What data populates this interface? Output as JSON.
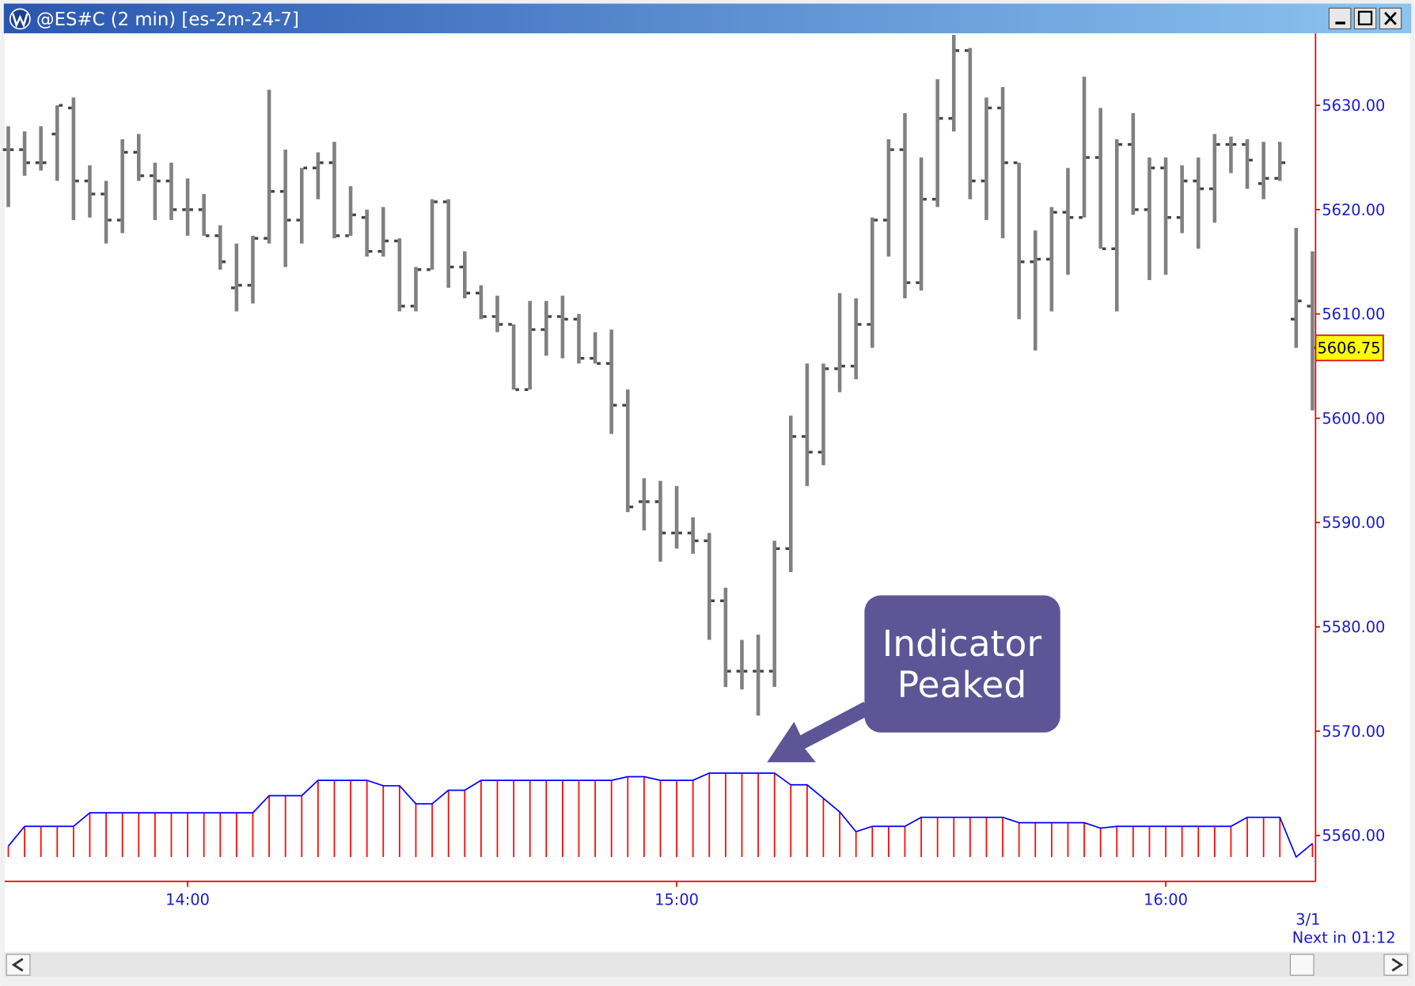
{
  "window": {
    "title": "@ES#C (2 min) [es-2m-24-7]"
  },
  "chart_data": {
    "type": "ohlc",
    "color": "#808080",
    "open": [
      5625.75,
      5625.75,
      5624.5,
      5627.25,
      5629.75,
      5622.75,
      5621.5,
      5619,
      5625.5,
      5623.25,
      5622.75,
      5620,
      5620,
      5617.5,
      5612.5,
      5612.75,
      5617.25,
      5621.75,
      5619,
      5624,
      5624.5,
      5617.5,
      5619.25,
      5616,
      5617,
      5610.75,
      5614.25,
      5620.75,
      5614.5,
      5612,
      5609.75,
      5609,
      5602.75,
      5608.5,
      5609.75,
      5609.5,
      5605.75,
      5605.25,
      5601.25,
      5592,
      5592,
      5589,
      5589,
      5588.25,
      5582.5,
      5575.75,
      5575.75,
      5575.75,
      5587.5,
      5598.25,
      5596.75,
      5604.75,
      5605,
      5609,
      5619,
      5625.75,
      5613,
      5621,
      5628.75,
      5635.25,
      5622.75,
      5629.75,
      5624.5,
      5615,
      5615.25,
      5619.75,
      5619.25,
      5625,
      5616.25,
      5626.25,
      5620,
      5624,
      5619.25,
      5622.75,
      5622,
      5626.25,
      5626.25,
      5622.5,
      5623,
      5609.5,
      5610.75
    ],
    "high": [
      5628,
      5627.5,
      5628,
      5630,
      5630.75,
      5624.25,
      5622.75,
      5626.75,
      5627.25,
      5624.5,
      5624.5,
      5623,
      5621.5,
      5618.5,
      5616.75,
      5617.5,
      5631.5,
      5625.75,
      5624,
      5625.5,
      5626.5,
      5622.25,
      5620,
      5620.25,
      5617.25,
      5614.5,
      5621,
      5621,
      5616,
      5612.75,
      5611.75,
      5609,
      5611.25,
      5611.25,
      5611.75,
      5610,
      5608.25,
      5608.5,
      5602.75,
      5594.25,
      5594,
      5593.5,
      5590.5,
      5589,
      5583.75,
      5578.75,
      5579.25,
      5588.25,
      5600.25,
      5605.25,
      5605.25,
      5612,
      5611.5,
      5619.25,
      5626.75,
      5629.25,
      5625,
      5632.5,
      5636.75,
      5635.5,
      5630.75,
      5631.75,
      5624.5,
      5618,
      5620.25,
      5624,
      5632.75,
      5629.75,
      5626.75,
      5629.25,
      5625,
      5625,
      5624.25,
      5625,
      5627.25,
      5627,
      5626.75,
      5626.5,
      5626.5,
      5618.25,
      5616
    ],
    "low": [
      5620.25,
      5623.25,
      5623.75,
      5622.75,
      5619,
      5619.25,
      5616.75,
      5617.75,
      5622.75,
      5619,
      5619,
      5617.5,
      5617.5,
      5614.25,
      5610.25,
      5611,
      5616.75,
      5614.5,
      5616.75,
      5621,
      5617.25,
      5617.5,
      5615.5,
      5615.5,
      5610.25,
      5610.25,
      5614.25,
      5612.5,
      5611.5,
      5609.5,
      5608.25,
      5602.75,
      5602.75,
      5606,
      5605.75,
      5605.25,
      5605.25,
      5598.5,
      5591,
      5589.25,
      5586.25,
      5587.5,
      5587,
      5578.75,
      5574.25,
      5574,
      5571.5,
      5574.25,
      5585.25,
      5593.5,
      5595.5,
      5602.5,
      5603.75,
      5606.75,
      5615.5,
      5611.5,
      5612.25,
      5620.25,
      5627.5,
      5621,
      5619,
      5617.25,
      5609.5,
      5606.5,
      5610.25,
      5613.75,
      5619.25,
      5616.25,
      5610.25,
      5619.5,
      5613.25,
      5613.75,
      5617.75,
      5616.25,
      5618.75,
      5623.5,
      5622,
      5621,
      5622.75,
      5606.75,
      5600.75
    ],
    "close": [
      5625.75,
      5624.5,
      5624.5,
      5630,
      5622.75,
      5621.5,
      5619,
      5625.5,
      5623.25,
      5622.75,
      5620,
      5620,
      5617.5,
      5615,
      5612.75,
      5617.25,
      5621.75,
      5619,
      5624,
      5624.5,
      5617.5,
      5619.5,
      5616,
      5617,
      5610.75,
      5614.25,
      5620.75,
      5614.5,
      5612,
      5609.75,
      5609,
      5602.75,
      5608.5,
      5609.75,
      5609.5,
      5605.75,
      5605.25,
      5601.25,
      5591.5,
      5592,
      5589,
      5589,
      5588.25,
      5582.5,
      5575.75,
      5575.75,
      5575.75,
      5587.5,
      5598.25,
      5596.75,
      5604.75,
      5605,
      5609,
      5619,
      5625.75,
      5613,
      5621,
      5628.75,
      5635.25,
      5622.75,
      5629.75,
      5624.5,
      5615,
      5615.25,
      5619.75,
      5619.25,
      5625,
      5616.25,
      5626.25,
      5620,
      5624,
      5619.25,
      5622.75,
      5622,
      5626.25,
      5626.25,
      5624.75,
      5623,
      5624.5,
      5611.25,
      5606.75
    ],
    "ylim": [
      5555.6,
      5636.9
    ],
    "yticks": [
      {
        "value": 5560,
        "label": "5560.00"
      },
      {
        "value": 5570,
        "label": "5570.00"
      },
      {
        "value": 5580,
        "label": "5580.00"
      },
      {
        "value": 5590,
        "label": "5590.00"
      },
      {
        "value": 5600,
        "label": "5600.00"
      },
      {
        "value": 5610,
        "label": "5610.00"
      },
      {
        "value": 5620,
        "label": "5620.00"
      },
      {
        "value": 5630,
        "label": "5630.00"
      }
    ],
    "xlim": [
      -0.22,
      80.19
    ],
    "xticks": [
      {
        "value": 11,
        "label": "14:00"
      },
      {
        "value": 41,
        "label": "15:00"
      },
      {
        "value": 71,
        "label": "16:00"
      }
    ],
    "last_price": 5606.75,
    "indicator": {
      "type": "histogram",
      "bar_color": "#ff0000",
      "line_color": "#0000ff",
      "values": [
        10,
        32,
        32,
        32,
        32,
        47,
        47,
        47,
        47,
        47,
        47,
        47,
        47,
        47,
        47,
        47,
        66,
        66,
        66,
        83,
        83,
        83,
        83,
        77,
        77,
        57,
        57,
        72,
        72,
        83,
        83,
        83,
        83,
        83,
        83,
        83,
        83,
        83,
        87,
        87,
        83,
        83,
        83,
        91,
        91,
        91,
        91,
        91,
        78,
        78,
        63,
        48,
        26,
        32,
        32,
        32,
        42,
        42,
        42,
        42,
        42,
        42,
        36,
        36,
        36,
        36,
        36,
        30,
        32,
        32,
        32,
        32,
        32,
        32,
        32,
        32,
        42,
        42,
        42,
        -2,
        13
      ]
    },
    "annotation": [
      "Indicator",
      "Peaked"
    ],
    "date_label": "3/1",
    "countdown": "Next in 01:12"
  }
}
